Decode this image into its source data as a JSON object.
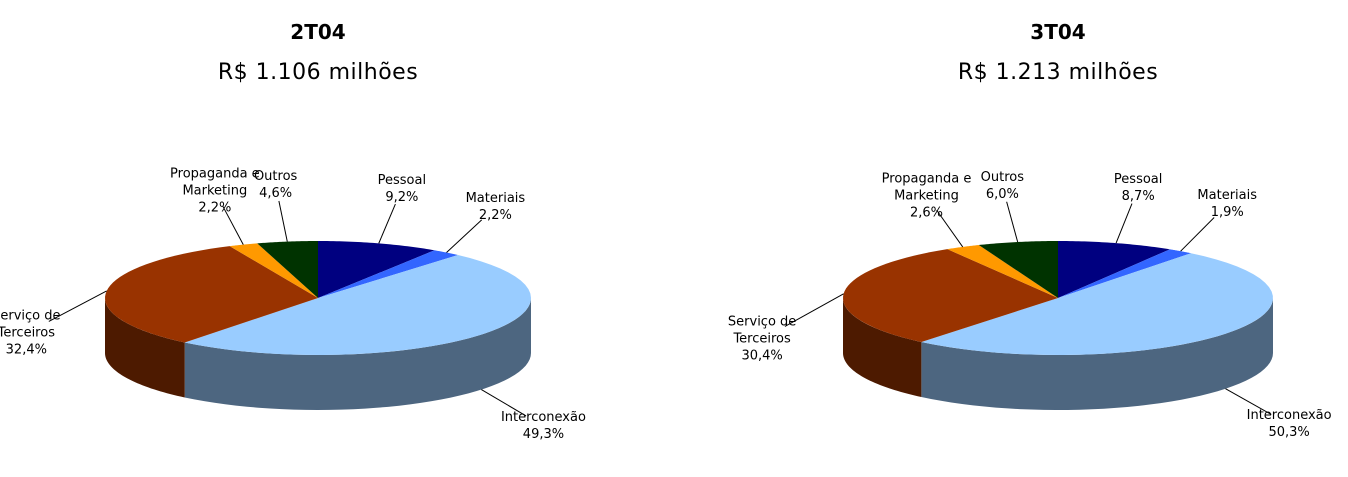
{
  "chart_data": [
    {
      "type": "pie3d",
      "title": "2T04",
      "subtitle": "R$ 1.106 milhões",
      "categories": [
        "Pessoal",
        "Materiais",
        "Interconexão",
        "Serviço de Terceiros",
        "Propaganda e Marketing",
        "Outros"
      ],
      "values": [
        9.2,
        2.2,
        49.3,
        32.4,
        2.2,
        4.6
      ],
      "value_labels": [
        "9,2%",
        "2,2%",
        "49,3%",
        "32,4%",
        "2,2%",
        "4,6%"
      ],
      "colors": [
        "#000080",
        "#3366ff",
        "#99ccff",
        "#993300",
        "#ff9900",
        "#003300"
      ]
    },
    {
      "type": "pie3d",
      "title": "3T04",
      "subtitle": "R$ 1.213 milhões",
      "categories": [
        "Pessoal",
        "Materiais",
        "Interconexão",
        "Serviço de Terceiros",
        "Propaganda e Marketing",
        "Outros"
      ],
      "values": [
        8.7,
        1.9,
        50.3,
        30.4,
        2.6,
        6.0
      ],
      "value_labels": [
        "8,7%",
        "1,9%",
        "50,3%",
        "30,4%",
        "2,6%",
        "6,0%"
      ],
      "colors": [
        "#000080",
        "#3366ff",
        "#99ccff",
        "#993300",
        "#ff9900",
        "#003300"
      ]
    }
  ]
}
